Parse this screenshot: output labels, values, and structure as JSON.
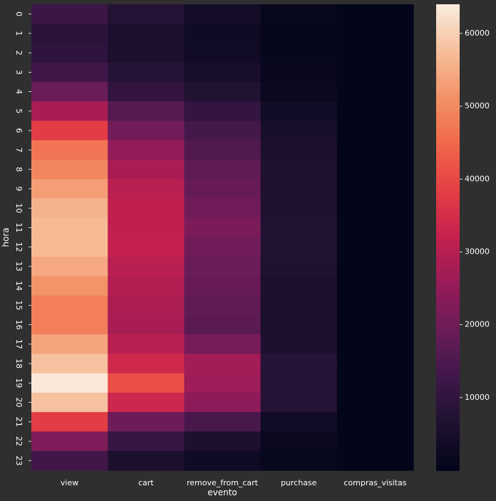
{
  "chart_data": {
    "type": "heatmap",
    "title": "",
    "xlabel": "evento",
    "ylabel": "hora",
    "x_categories": [
      "view",
      "cart",
      "remove_from_cart",
      "purchase",
      "compras_visitas"
    ],
    "y_categories": [
      "0",
      "1",
      "2",
      "3",
      "4",
      "5",
      "6",
      "7",
      "8",
      "9",
      "10",
      "11",
      "12",
      "13",
      "14",
      "15",
      "16",
      "17",
      "18",
      "19",
      "20",
      "21",
      "22",
      "23"
    ],
    "values": [
      [
        12000,
        7500,
        4000,
        800,
        0
      ],
      [
        8500,
        5500,
        3000,
        600,
        0
      ],
      [
        9500,
        6000,
        3200,
        600,
        0
      ],
      [
        13000,
        7500,
        4800,
        1200,
        0
      ],
      [
        19000,
        10000,
        7000,
        1800,
        0
      ],
      [
        28000,
        16000,
        10500,
        3500,
        0
      ],
      [
        38000,
        20000,
        13500,
        5000,
        0
      ],
      [
        47000,
        25000,
        15500,
        5500,
        0
      ],
      [
        49500,
        28000,
        17500,
        6500,
        0
      ],
      [
        53000,
        30500,
        18500,
        6500,
        0
      ],
      [
        56000,
        31500,
        20000,
        6500,
        0
      ],
      [
        57000,
        31500,
        21500,
        7000,
        0
      ],
      [
        57000,
        32000,
        20000,
        7000,
        0
      ],
      [
        54500,
        30500,
        19000,
        6500,
        0
      ],
      [
        51500,
        29500,
        18500,
        6000,
        0
      ],
      [
        48500,
        28500,
        17500,
        5500,
        0
      ],
      [
        48500,
        28000,
        17000,
        5500,
        0
      ],
      [
        54000,
        30500,
        21000,
        6000,
        0
      ],
      [
        58000,
        34000,
        27000,
        8000,
        0
      ],
      [
        63500,
        41000,
        26500,
        7500,
        0
      ],
      [
        58000,
        33500,
        24000,
        7500,
        0
      ],
      [
        38000,
        19500,
        14000,
        3200,
        0
      ],
      [
        22000,
        11000,
        6000,
        1800,
        0
      ],
      [
        13000,
        6000,
        3000,
        900,
        0
      ]
    ],
    "colorbar": {
      "min": 0,
      "max": 64000,
      "ticks": [
        "10000",
        "20000",
        "30000",
        "40000",
        "50000",
        "60000"
      ],
      "tick_values": [
        10000,
        20000,
        30000,
        40000,
        50000,
        60000
      ]
    },
    "colormap": "rocket",
    "grid": false
  },
  "colors": {
    "background": "#2f2f2f",
    "text": "#ffffff"
  }
}
